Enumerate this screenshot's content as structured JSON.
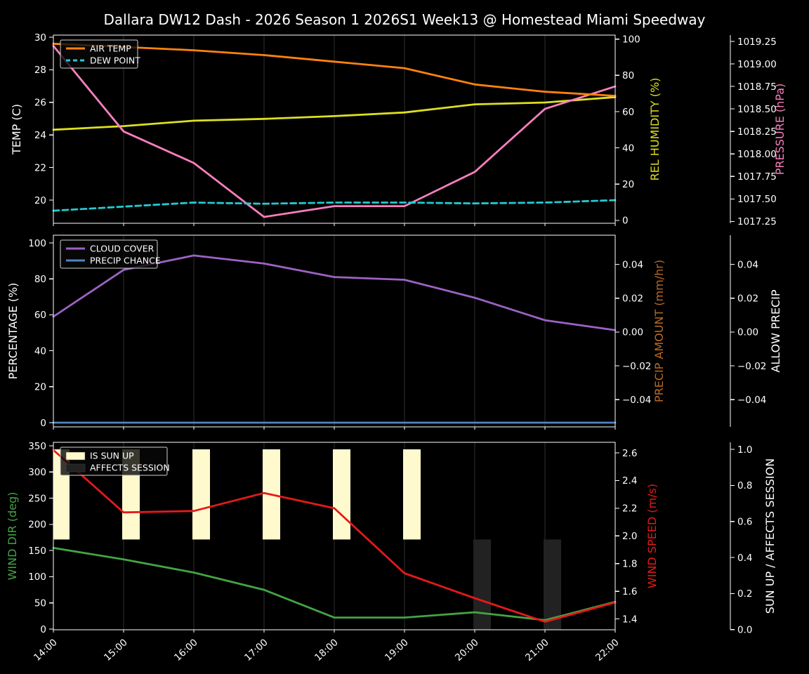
{
  "title": "Dallara DW12 Dash - 2026 Season 1 2026S1 Week13 @ Homestead Miami Speedway",
  "colors": {
    "background": "#000000",
    "text": "#ffffff",
    "grid": "#303030",
    "air_temp": "#ff820d",
    "dew_point": "#25c9d0",
    "rel_humidity": "#dde01f",
    "pressure": "#f77fbe",
    "cloud_cover": "#9d62c4",
    "precip_chance": "#4d85c0",
    "precip_amount_label": "#b96a24",
    "allow_precip_label": "#ffffff",
    "wind_dir": "#44a444",
    "wind_speed": "#e61919",
    "sun_up": "#fffacd",
    "affects_session": "#222222"
  },
  "chart_data": {
    "type": "line",
    "x_hours": [
      14,
      15,
      16,
      17,
      18,
      19,
      20,
      21,
      22
    ],
    "x_labels": [
      "14:00",
      "15:00",
      "16:00",
      "17:00",
      "18:00",
      "19:00",
      "20:00",
      "21:00",
      "22:00"
    ],
    "panels": [
      {
        "id": "temperature",
        "left_axis": {
          "label": "TEMP (C)",
          "color": "#ffffff",
          "range": [
            18.58,
            30.13
          ],
          "tick_values": [
            20,
            22,
            24,
            26,
            28,
            30
          ],
          "tick_labels": [
            "20",
            "22",
            "24",
            "26",
            "28",
            "30"
          ]
        },
        "right_axis_1": {
          "label": "REL HUMIDITY (%)",
          "color": "#dde01f",
          "range": [
            -1.6,
            102.2
          ],
          "tick_values": [
            0,
            20,
            40,
            60,
            80,
            100
          ],
          "tick_labels": [
            "0",
            "20",
            "40",
            "60",
            "80",
            "100"
          ]
        },
        "right_axis_2": {
          "label": "PRESSURE (hPa)",
          "color": "#f77fbe",
          "range": [
            1017.23,
            1019.32
          ],
          "tick_values": [
            1017.25,
            1017.5,
            1017.75,
            1018.0,
            1018.25,
            1018.5,
            1018.75,
            1019.0,
            1019.25
          ],
          "tick_labels": [
            "1017.25",
            "1017.50",
            "1017.75",
            "1018.00",
            "1018.25",
            "1018.50",
            "1018.75",
            "1019.00",
            "1019.25"
          ]
        },
        "legend": [
          {
            "label": "AIR TEMP",
            "swatch": "line",
            "color": "#ff820d"
          },
          {
            "label": "DEW POINT",
            "swatch": "dashed-line",
            "color": "#25c9d0"
          }
        ],
        "series": [
          {
            "name": "REL HUMIDITY",
            "axis": "right1",
            "color": "#dde01f",
            "dash": false,
            "values": [
              50,
              52,
              55,
              56,
              57.5,
              59.5,
              64,
              65,
              68
            ]
          },
          {
            "name": "PRESSURE",
            "axis": "right2",
            "color": "#f77fbe",
            "dash": false,
            "values": [
              1019.2,
              1018.25,
              1017.9,
              1017.3,
              1017.42,
              1017.42,
              1017.8,
              1018.5,
              1018.75
            ]
          },
          {
            "name": "AIR TEMP",
            "axis": "left",
            "color": "#ff820d",
            "dash": false,
            "values": [
              29.6,
              29.4,
              29.2,
              28.9,
              28.5,
              28.1,
              27.1,
              26.65,
              26.4
            ]
          },
          {
            "name": "DEW POINT",
            "axis": "left",
            "color": "#25c9d0",
            "dash": true,
            "values": [
              19.35,
              19.6,
              19.85,
              19.78,
              19.85,
              19.85,
              19.8,
              19.85,
              20.0
            ]
          }
        ],
        "bars": []
      },
      {
        "id": "precipitation",
        "left_axis": {
          "label": "PERCENTAGE (%)",
          "color": "#ffffff",
          "range": [
            -2.34,
            104.3
          ],
          "tick_values": [
            0,
            20,
            40,
            60,
            80,
            100
          ],
          "tick_labels": [
            "0",
            "20",
            "40",
            "60",
            "80",
            "100"
          ]
        },
        "right_axis_1": {
          "label": "PRECIP AMOUNT (mm/hr)",
          "color": "#b96a24",
          "range": [
            -0.0561,
            0.0573
          ],
          "tick_values": [
            0.04,
            0.02,
            0.0,
            -0.02,
            -0.04
          ],
          "tick_labels": [
            "0.04",
            "0.02",
            "0.00",
            "−0.02",
            "−0.04"
          ]
        },
        "right_axis_2": {
          "label": "ALLOW PRECIP",
          "color": "#ffffff",
          "range": [
            -0.0561,
            0.0573
          ],
          "tick_values": [
            0.04,
            0.02,
            0.0,
            -0.02,
            -0.04
          ],
          "tick_labels": [
            "0.04",
            "0.02",
            "0.00",
            "−0.02",
            "−0.04"
          ]
        },
        "legend": [
          {
            "label": "CLOUD COVER",
            "swatch": "line",
            "color": "#9d62c4"
          },
          {
            "label": "PRECIP CHANCE",
            "swatch": "line",
            "color": "#4d85c0"
          }
        ],
        "series": [
          {
            "name": "CLOUD COVER",
            "axis": "left",
            "color": "#9d62c4",
            "dash": false,
            "values": [
              59,
              85,
              93,
              88.5,
              81,
              79.5,
              69.5,
              57,
              51.5
            ]
          },
          {
            "name": "PRECIP CHANCE",
            "axis": "left",
            "color": "#4d85c0",
            "dash": false,
            "values": [
              0,
              0,
              0,
              0,
              0,
              0,
              0,
              0,
              0
            ]
          }
        ],
        "bars": []
      },
      {
        "id": "wind-sun",
        "left_axis": {
          "label": "WIND DIR (deg)",
          "color": "#44a444",
          "range": [
            -1.34,
            356.7
          ],
          "tick_values": [
            0,
            50,
            100,
            150,
            200,
            250,
            300,
            350
          ],
          "tick_labels": [
            "0",
            "50",
            "100",
            "150",
            "200",
            "250",
            "300",
            "350"
          ]
        },
        "right_axis_1": {
          "label": "WIND SPEED (m/s)",
          "color": "#e61919",
          "range": [
            1.322,
            2.676
          ],
          "tick_values": [
            1.4,
            1.6,
            1.8,
            2.0,
            2.2,
            2.4,
            2.6
          ],
          "tick_labels": [
            "1.4",
            "1.6",
            "1.8",
            "2.0",
            "2.2",
            "2.4",
            "2.6"
          ]
        },
        "right_axis_2": {
          "label": "SUN UP / AFFECTS SESSION",
          "color": "#ffffff",
          "range": [
            -0.001,
            1.039
          ],
          "tick_values": [
            0.0,
            0.2,
            0.4,
            0.6,
            0.8,
            1.0
          ],
          "tick_labels": [
            "0.0",
            "0.2",
            "0.4",
            "0.6",
            "0.8",
            "1.0"
          ]
        },
        "legend": [
          {
            "label": "IS SUN UP",
            "swatch": "patch",
            "color": "#fffacd"
          },
          {
            "label": "AFFECTS SESSION",
            "swatch": "patch",
            "color": "#222222"
          }
        ],
        "series": [
          {
            "name": "WIND DIR",
            "axis": "left",
            "color": "#44a444",
            "dash": false,
            "values": [
              155,
              133,
              108,
              75,
              22,
              22,
              32,
              17,
              52
            ]
          },
          {
            "name": "WIND SPEED",
            "axis": "right1",
            "color": "#e61919",
            "dash": false,
            "values": [
              2.62,
              2.17,
              2.18,
              2.31,
              2.2,
              1.73,
              1.55,
              1.38,
              1.52
            ]
          }
        ],
        "bars": [
          {
            "name": "IS SUN UP",
            "axis": "right2",
            "color": "#fffacd",
            "base": 0.5,
            "top": 1.0,
            "active": [
              1,
              1,
              1,
              1,
              1,
              1,
              0,
              0,
              0
            ]
          },
          {
            "name": "AFFECTS SESSION",
            "axis": "right2",
            "color": "#222222",
            "base": 0.0,
            "top": 0.5,
            "active": [
              0,
              0,
              0,
              0,
              0,
              0,
              1,
              1,
              0
            ]
          }
        ]
      }
    ]
  }
}
